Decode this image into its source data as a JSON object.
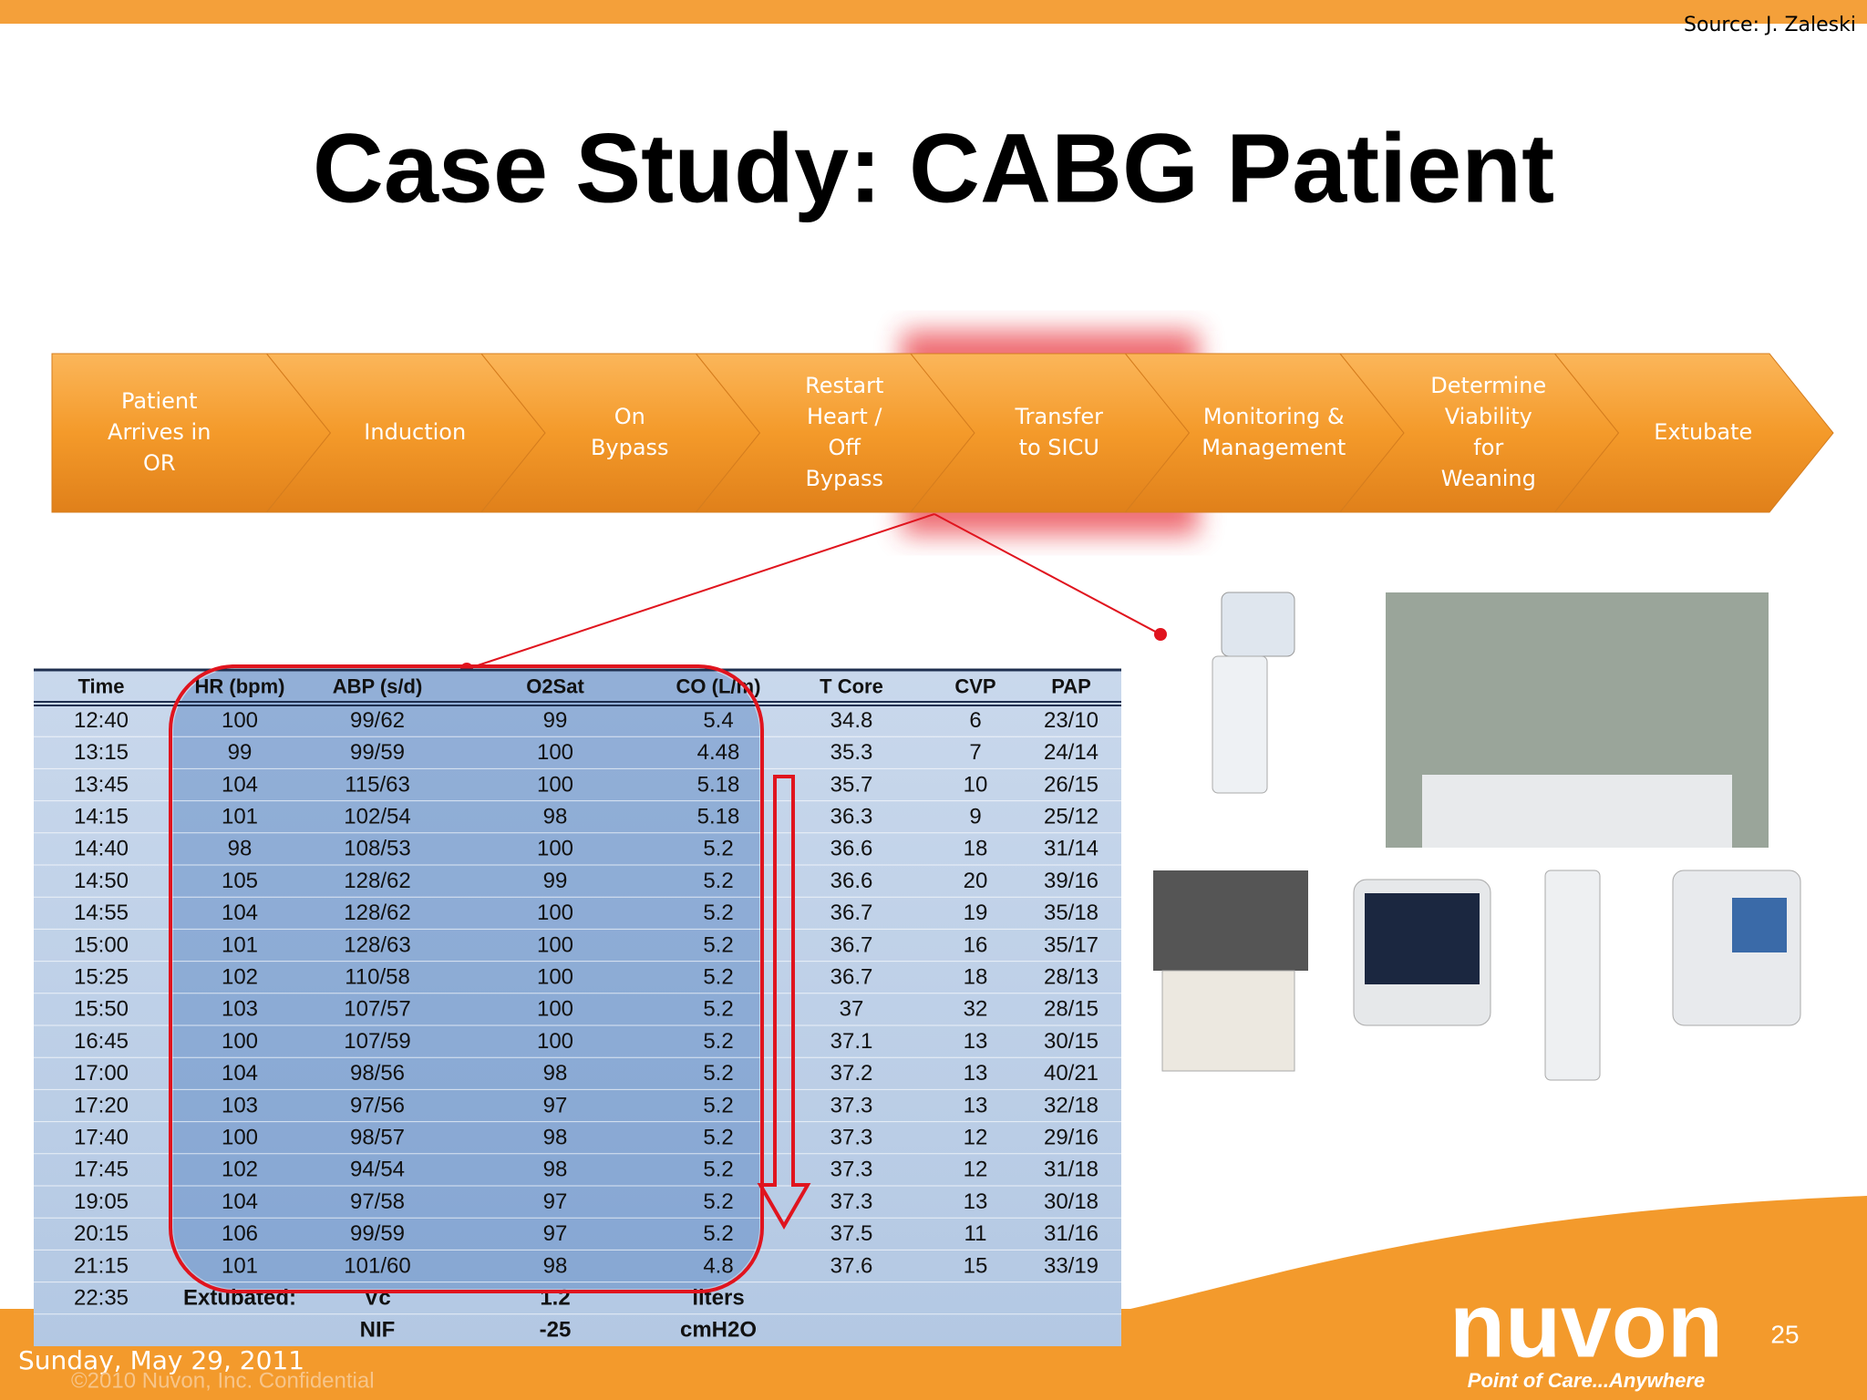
{
  "header": {
    "source": "Source: J. Zaleski",
    "title": "Case Study: CABG Patient"
  },
  "workflow": {
    "steps": [
      {
        "lines": [
          "Patient",
          "Arrives in",
          "OR"
        ]
      },
      {
        "lines": [
          "Induction"
        ]
      },
      {
        "lines": [
          "On",
          "Bypass"
        ]
      },
      {
        "lines": [
          "Restart",
          "Heart /",
          "Off",
          "Bypass"
        ]
      },
      {
        "lines": [
          "Transfer",
          "to SICU"
        ]
      },
      {
        "lines": [
          "Monitoring &",
          "Management"
        ]
      },
      {
        "lines": [
          "Determine",
          "Viability",
          "for",
          "Weaning"
        ]
      },
      {
        "lines": [
          "Extubate"
        ]
      }
    ]
  },
  "table": {
    "columns": [
      "Time",
      "HR (bpm)",
      "ABP (s/d)",
      "O2Sat",
      "CO (L/m)",
      "T Core",
      "CVP",
      "PAP"
    ],
    "rows": [
      [
        "12:40",
        "100",
        "99/62",
        "99",
        "5.4",
        "34.8",
        "6",
        "23/10"
      ],
      [
        "13:15",
        "99",
        "99/59",
        "100",
        "4.48",
        "35.3",
        "7",
        "24/14"
      ],
      [
        "13:45",
        "104",
        "115/63",
        "100",
        "5.18",
        "35.7",
        "10",
        "26/15"
      ],
      [
        "14:15",
        "101",
        "102/54",
        "98",
        "5.18",
        "36.3",
        "9",
        "25/12"
      ],
      [
        "14:40",
        "98",
        "108/53",
        "100",
        "5.2",
        "36.6",
        "18",
        "31/14"
      ],
      [
        "14:50",
        "105",
        "128/62",
        "99",
        "5.2",
        "36.6",
        "20",
        "39/16"
      ],
      [
        "14:55",
        "104",
        "128/62",
        "100",
        "5.2",
        "36.7",
        "19",
        "35/18"
      ],
      [
        "15:00",
        "101",
        "128/63",
        "100",
        "5.2",
        "36.7",
        "16",
        "35/17"
      ],
      [
        "15:25",
        "102",
        "110/58",
        "100",
        "5.2",
        "36.7",
        "18",
        "28/13"
      ],
      [
        "15:50",
        "103",
        "107/57",
        "100",
        "5.2",
        "37",
        "32",
        "28/15"
      ],
      [
        "16:45",
        "100",
        "107/59",
        "100",
        "5.2",
        "37.1",
        "13",
        "30/15"
      ],
      [
        "17:00",
        "104",
        "98/56",
        "98",
        "5.2",
        "37.2",
        "13",
        "40/21"
      ],
      [
        "17:20",
        "103",
        "97/56",
        "97",
        "5.2",
        "37.3",
        "13",
        "32/18"
      ],
      [
        "17:40",
        "100",
        "98/57",
        "98",
        "5.2",
        "37.3",
        "12",
        "29/16"
      ],
      [
        "17:45",
        "102",
        "94/54",
        "98",
        "5.2",
        "37.3",
        "12",
        "31/18"
      ],
      [
        "19:05",
        "104",
        "97/58",
        "97",
        "5.2",
        "37.3",
        "13",
        "30/18"
      ],
      [
        "20:15",
        "106",
        "99/59",
        "97",
        "5.2",
        "37.5",
        "11",
        "31/16"
      ],
      [
        "21:15",
        "101",
        "101/60",
        "98",
        "4.8",
        "37.6",
        "15",
        "33/19"
      ],
      [
        "22:35",
        "Extubated:",
        "Vc",
        "1.2",
        "liters",
        null,
        null,
        null
      ],
      [
        null,
        null,
        "NIF",
        "-25",
        "cmH2O",
        null,
        null,
        null
      ]
    ]
  },
  "footer": {
    "date": "Sunday, May 29, 2011",
    "confidential": "©2010 Nuvon, Inc. Confidential",
    "logo": "nuvon",
    "tagline": "Point of Care...Anywhere",
    "page": "25"
  }
}
